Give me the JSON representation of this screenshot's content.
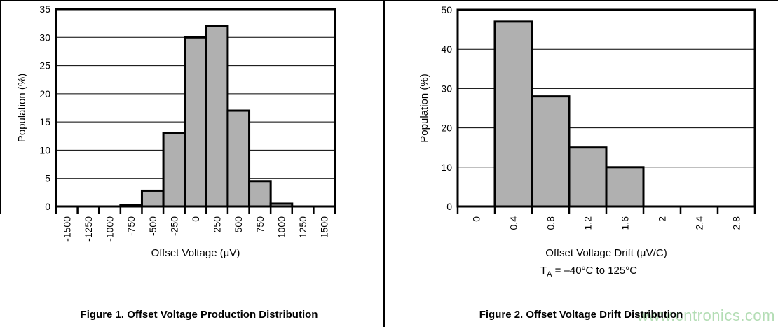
{
  "chart_data": [
    {
      "id": "figure1",
      "type": "bar",
      "title": "",
      "categories": [
        "-1500",
        "-1250",
        "-1000",
        "-750",
        "-500",
        "-250",
        "0",
        "250",
        "500",
        "750",
        "1000",
        "1250",
        "1500"
      ],
      "values": [
        0,
        0,
        0,
        0.3,
        2.8,
        13,
        30,
        32,
        17,
        4.5,
        0.5,
        0,
        0
      ],
      "xlabel": "Offset Voltage (µV)",
      "ylabel": "Population (%)",
      "ylim": [
        0,
        35
      ],
      "yticks": [
        0,
        5,
        10,
        15,
        20,
        25,
        30,
        35
      ],
      "grid": true,
      "legend": "none",
      "caption": "Figure 1. Offset Voltage Production Distribution"
    },
    {
      "id": "figure2",
      "type": "bar",
      "title": "",
      "categories": [
        "0",
        "0.4",
        "0.8",
        "1.2",
        "1.6",
        "2",
        "2.4",
        "2.8"
      ],
      "values": [
        0,
        47,
        28,
        15,
        10,
        0,
        0,
        0
      ],
      "xlabel": "Offset Voltage Drift (µV/C)",
      "ylabel": "Population (%)",
      "ylim": [
        0,
        50
      ],
      "yticks": [
        0,
        10,
        20,
        30,
        40,
        50
      ],
      "grid": true,
      "legend": "none",
      "caption": "Figure 2. Offset Voltage Drift Distribution",
      "note_prefix": "T",
      "note_sub": "A",
      "note_rest": " = –40°C to 125°C"
    }
  ],
  "colors": {
    "bar_fill": "#b0b0b0",
    "line": "#000000",
    "watermark": "#b3ddb4"
  },
  "watermark": {
    "text": "www.cntronics.com"
  }
}
